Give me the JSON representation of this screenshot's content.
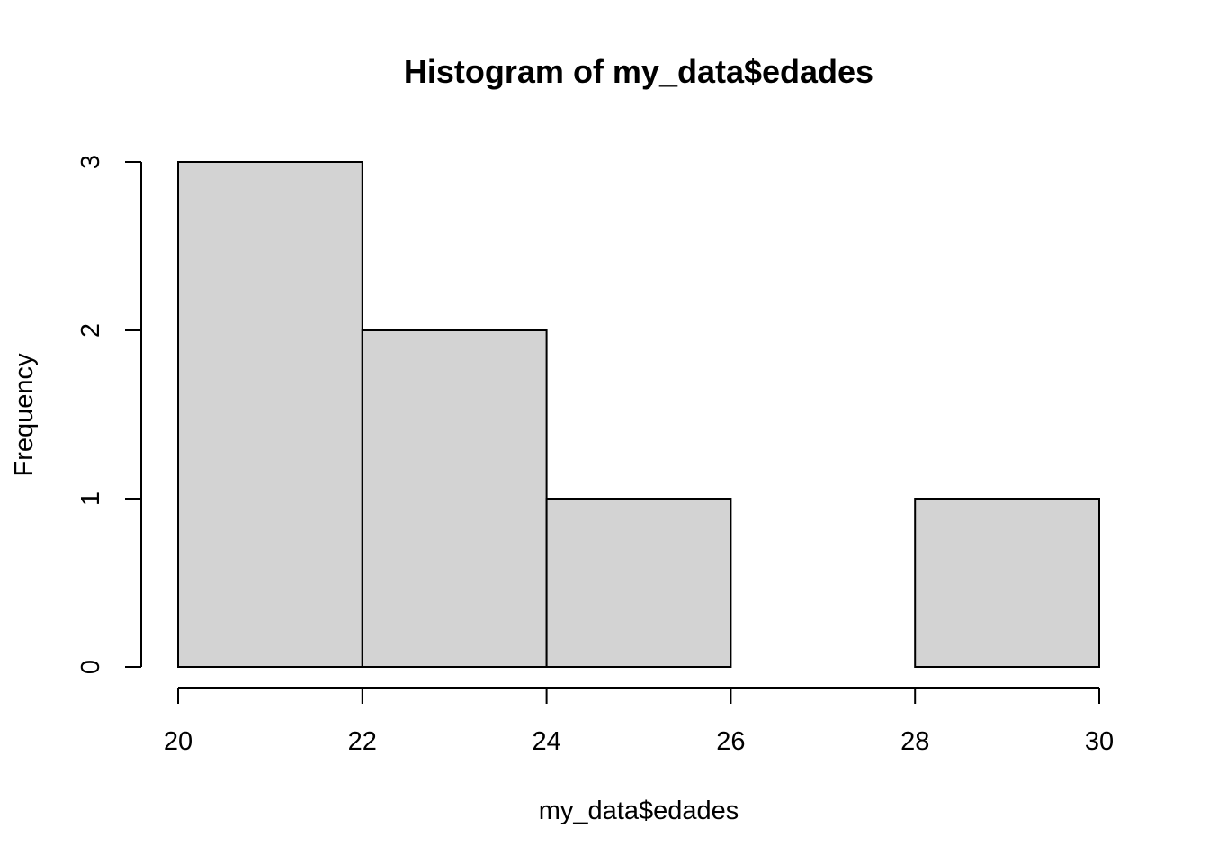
{
  "chart_data": {
    "type": "bar",
    "title": "Histogram of my_data$edades",
    "xlabel": "my_data$edades",
    "ylabel": "Frequency",
    "bins": [
      {
        "from": 20,
        "to": 22,
        "count": 3
      },
      {
        "from": 22,
        "to": 24,
        "count": 2
      },
      {
        "from": 24,
        "to": 26,
        "count": 1
      },
      {
        "from": 26,
        "to": 28,
        "count": 0
      },
      {
        "from": 28,
        "to": 30,
        "count": 1
      }
    ],
    "xlim": [
      20,
      30
    ],
    "ylim": [
      0,
      3
    ],
    "x_ticks": [
      20,
      22,
      24,
      26,
      28,
      30
    ],
    "y_ticks": [
      0,
      1,
      2,
      3
    ],
    "grid": false,
    "legend": "none",
    "bar_fill": "#d3d3d3",
    "bar_stroke": "#000000"
  }
}
